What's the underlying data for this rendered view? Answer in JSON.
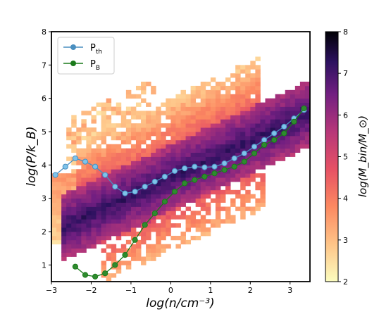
{
  "chart_data": {
    "type": "heatmap",
    "title": "",
    "xlabel": "log(n/cm⁻³)",
    "ylabel": "log(P/k_B)",
    "xlim": [
      -3,
      3.5
    ],
    "ylim": [
      0.5,
      8
    ],
    "xticks": [
      -3,
      -2,
      -1,
      0,
      1,
      2,
      3
    ],
    "yticks": [
      1,
      2,
      3,
      4,
      5,
      6,
      7,
      8
    ],
    "grid": false,
    "legend_position": "top-left",
    "colormap": "magma_r",
    "colorbar": {
      "label": "log(M_bin/M_⊙)",
      "range": [
        2,
        8
      ],
      "ticks": [
        2,
        3,
        4,
        5,
        6,
        7,
        8
      ]
    },
    "series": [
      {
        "name": "P_th",
        "color": "#4a8fc0",
        "marker_face": "#7ec3ea",
        "x": [
          -2.9,
          -2.65,
          -2.4,
          -2.15,
          -1.9,
          -1.65,
          -1.4,
          -1.15,
          -0.9,
          -0.65,
          -0.4,
          -0.15,
          0.1,
          0.35,
          0.6,
          0.85,
          1.1,
          1.35,
          1.6,
          1.85,
          2.1,
          2.35,
          2.6,
          2.85,
          3.1,
          3.35
        ],
        "values": [
          3.7,
          3.95,
          4.2,
          4.1,
          3.95,
          3.7,
          3.35,
          3.15,
          3.2,
          3.35,
          3.5,
          3.65,
          3.82,
          3.9,
          3.95,
          3.93,
          3.95,
          4.05,
          4.2,
          4.35,
          4.55,
          4.75,
          4.95,
          5.15,
          5.4,
          5.65
        ]
      },
      {
        "name": "P_B",
        "color": "#1a7a1a",
        "marker_face": "#2e8b2e",
        "x": [
          -2.4,
          -2.15,
          -1.9,
          -1.65,
          -1.4,
          -1.15,
          -0.9,
          -0.65,
          -0.4,
          -0.15,
          0.1,
          0.35,
          0.6,
          0.85,
          1.1,
          1.35,
          1.6,
          1.85,
          2.1,
          2.35,
          2.6,
          2.85,
          3.1,
          3.35
        ],
        "values": [
          0.95,
          0.7,
          0.65,
          0.75,
          1.0,
          1.3,
          1.75,
          2.2,
          2.55,
          2.9,
          3.2,
          3.45,
          3.55,
          3.65,
          3.75,
          3.85,
          3.95,
          4.1,
          4.35,
          4.6,
          4.75,
          4.95,
          5.3,
          5.7
        ]
      }
    ],
    "legend": {
      "entries": [
        {
          "main": "P",
          "sub": "th"
        },
        {
          "main": "P",
          "sub": "B"
        }
      ]
    }
  }
}
